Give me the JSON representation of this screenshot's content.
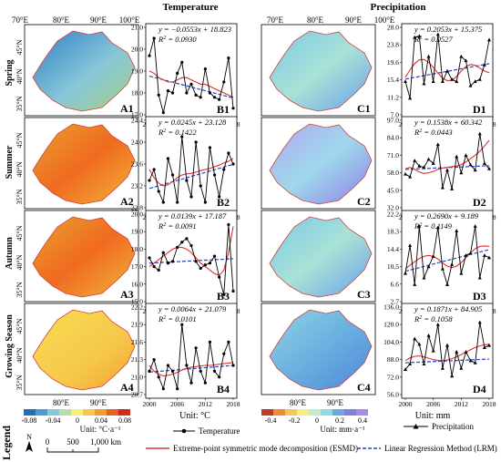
{
  "headers": {
    "temperature": "Temperature",
    "precipitation": "Precipitation"
  },
  "seasons": [
    "Spring",
    "Summer",
    "Autumn",
    "Growing Season"
  ],
  "map_labels": {
    "top_lon": [
      "70°E",
      "80°E",
      "90°E",
      "100°E"
    ],
    "lat": [
      "45°N",
      "40°N",
      "35°N"
    ],
    "bottom_lon": [
      "80°E",
      "90°E"
    ]
  },
  "panel_ids": {
    "maps_temp": [
      "A1",
      "A2",
      "A3",
      "A4"
    ],
    "series_temp": [
      "B1",
      "B2",
      "B3",
      "B4"
    ],
    "maps_precip": [
      "C1",
      "C2",
      "C3",
      "C4"
    ],
    "series_precip": [
      "D1",
      "D2",
      "D3",
      "D4"
    ]
  },
  "legend": {
    "title": "Legend",
    "temp_ticks": [
      "-0.08",
      "-0.04",
      "0",
      "0.04",
      "0.08"
    ],
    "temp_unit": "Unit: °C·a⁻¹",
    "precip_ticks": [
      "-0.4",
      "-0.2",
      "0",
      "0.2",
      "0.4"
    ],
    "precip_unit": "Unit: mm·a⁻¹",
    "series_unit_temp": "Unit: °C",
    "series_unit_precip": "Unit: mm",
    "temp_series_label": "Temperature",
    "precip_series_label": "Precipitation",
    "esmd_label": "Extreme-point symmetric mode decomposition (ESMD)",
    "lrm_label": "Linear Regression Method (LRM)",
    "scale_labels": [
      "0",
      "500",
      "1,000 km"
    ],
    "north": "N",
    "colors": {
      "esmd": "#e03030",
      "lrm": "#2244cc",
      "series": "#000000",
      "boundary": "#d04040"
    }
  },
  "chart_data": [
    {
      "id": "B1",
      "type": "line",
      "equation": "y = −0.0553x + 18.823",
      "r2_label": "R",
      "r2_value": "2 = 0.0930",
      "yticks": [
        "17.0",
        "18.0",
        "19.0",
        "20.0",
        "21.0"
      ],
      "ylim": [
        17.0,
        21.0
      ],
      "xticks": [
        "2000",
        "2006",
        "2012",
        "2018"
      ],
      "xlim": [
        2000,
        2018
      ],
      "series_name": "Temperature",
      "values": [
        19.7,
        20.5,
        17.9,
        17.1,
        18.1,
        18.0,
        18.9,
        19.4,
        18.0,
        18.4,
        17.9,
        17.8,
        19.1,
        18.0,
        17.8,
        17.7,
        18.5,
        19.6,
        17.3
      ],
      "esmd": [
        19.0,
        18.9,
        18.7,
        18.6,
        18.5,
        18.5,
        18.6,
        18.7,
        18.7,
        18.6,
        18.5,
        18.4,
        18.4,
        18.3,
        18.2,
        18.1,
        18.0,
        17.9,
        17.8
      ]
    },
    {
      "id": "B2",
      "type": "line",
      "equation": "y = 0.0245x + 23.128",
      "r2_label": "R",
      "r2_value": "2 = 0.1422",
      "yticks": [
        "22.8",
        "23.2",
        "23.6",
        "24.0",
        "24.4"
      ],
      "ylim": [
        22.8,
        24.4
      ],
      "xticks": [
        "2000",
        "2006",
        "2012",
        "2018"
      ],
      "xlim": [
        2000,
        2018
      ],
      "series_name": "Temperature",
      "values": [
        23.3,
        23.5,
        23.1,
        22.9,
        23.7,
        23.4,
        22.9,
        24.1,
        23.3,
        23.0,
        24.0,
        23.2,
        22.9,
        23.9,
        23.4,
        23.0,
        23.5,
        23.8,
        23.6
      ],
      "esmd": [
        23.5,
        23.35,
        23.25,
        23.2,
        23.22,
        23.28,
        23.35,
        23.4,
        23.42,
        23.43,
        23.45,
        23.48,
        23.5,
        23.52,
        23.55,
        23.58,
        23.62,
        23.65,
        23.7
      ]
    },
    {
      "id": "B3",
      "type": "line",
      "equation": "y = 0.0139x + 17.187",
      "r2_label": "R",
      "r2_value": "2 = 0.0091",
      "yticks": [
        "15.0",
        "16.0",
        "17.0",
        "18.0",
        "19.0",
        "20.0"
      ],
      "ylim": [
        15.0,
        20.0
      ],
      "xticks": [
        "2000",
        "2006",
        "2012",
        "2018"
      ],
      "xlim": [
        2000,
        2018
      ],
      "series_name": "Temperature",
      "values": [
        17.5,
        17.0,
        16.8,
        17.8,
        17.2,
        17.3,
        18.1,
        18.4,
        18.6,
        18.2,
        17.3,
        16.9,
        17.1,
        17.2,
        17.6,
        16.4,
        15.4,
        19.4,
        15.6
      ],
      "esmd": [
        17.0,
        17.2,
        17.4,
        17.6,
        17.8,
        18.0,
        18.1,
        18.1,
        18.0,
        17.8,
        17.5,
        17.2,
        17.0,
        16.8,
        16.6,
        16.5,
        16.8,
        17.8,
        19.3
      ]
    },
    {
      "id": "B4",
      "type": "line",
      "equation": "y = 0.0064x + 21.079",
      "r2_label": "R",
      "r2_value": "2 = 0.0101",
      "yticks": [
        "20.7",
        "21.0",
        "21.3",
        "21.6",
        "21.9",
        "22.2"
      ],
      "ylim": [
        20.7,
        22.2
      ],
      "xticks": [
        "2000",
        "2006",
        "2012",
        "2018"
      ],
      "xlim": [
        2000,
        2018
      ],
      "series_name": "Temperature",
      "values": [
        21.1,
        21.3,
        21.0,
        20.8,
        21.2,
        21.1,
        20.8,
        21.9,
        21.2,
        20.9,
        21.5,
        21.1,
        20.9,
        21.6,
        21.1,
        21.0,
        21.4,
        21.6,
        21.2
      ],
      "esmd": [
        21.2,
        21.1,
        21.05,
        21.02,
        21.03,
        21.05,
        21.08,
        21.12,
        21.15,
        21.17,
        21.18,
        21.19,
        21.2,
        21.2,
        21.21,
        21.22,
        21.23,
        21.24,
        21.25
      ]
    },
    {
      "id": "D1",
      "type": "line",
      "equation": "y = 0.2053x + 15.375",
      "r2_label": "R",
      "r2_value": "2 = 0.0527",
      "yticks": [
        "7.0",
        "11.2",
        "15.4",
        "19.6",
        "23.8",
        "28.0"
      ],
      "ylim": [
        7.0,
        28.0
      ],
      "xticks": [
        "2000",
        "2006",
        "2012",
        "2018"
      ],
      "xlim": [
        2000,
        2018
      ],
      "series_name": "Precipitation",
      "values": [
        15.0,
        11.0,
        25.6,
        25.9,
        14.5,
        21.0,
        15.0,
        26.3,
        15.0,
        17.5,
        15.5,
        15.0,
        21.0,
        20.0,
        14.0,
        15.0,
        15.5,
        19.0,
        25.0
      ],
      "esmd": [
        16.0,
        17.8,
        19.3,
        20.2,
        20.3,
        19.6,
        18.4,
        17.0,
        15.8,
        15.2,
        15.3,
        16.2,
        17.5,
        18.6,
        19.1,
        18.9,
        18.2,
        17.5,
        17.1
      ]
    },
    {
      "id": "D2",
      "type": "line",
      "equation": "y = 0.1538x + 60.342",
      "r2_label": "R",
      "r2_value": "2 = 0.0443",
      "yticks": [
        "32.0",
        "45.0",
        "58.0",
        "71.0",
        "84.0",
        "97.0"
      ],
      "ylim": [
        32.0,
        97.0
      ],
      "xticks": [
        "2000",
        "2006",
        "2012",
        "2018"
      ],
      "xlim": [
        2000,
        2018
      ],
      "series_name": "Precipitation",
      "values": [
        57.0,
        55.0,
        67.0,
        63.0,
        62.0,
        68.0,
        65.0,
        79.0,
        47.0,
        60.0,
        46.0,
        70.0,
        58.0,
        71.0,
        64.0,
        60.0,
        87.0,
        65.0,
        61.0
      ],
      "esmd": [
        61.0,
        62.0,
        60.5,
        58.5,
        57.5,
        58.0,
        59.0,
        60.5,
        61.5,
        62.0,
        62.5,
        63.0,
        64.0,
        66.0,
        68.5,
        71.0,
        74.0,
        78.0,
        82.0
      ]
    },
    {
      "id": "D3",
      "type": "line",
      "equation": "y = 0.2690x + 9.189",
      "r2_label": "R",
      "r2_value": "2 = 0.1149",
      "yticks": [
        "2.7",
        "6.6",
        "10.5",
        "14.4",
        "18.3",
        "22.2"
      ],
      "ylim": [
        2.7,
        22.2
      ],
      "xticks": [
        "2000",
        "2006",
        "2012",
        "2018"
      ],
      "xlim": [
        2000,
        2018
      ],
      "series_name": "Precipitation",
      "values": [
        9.0,
        15.2,
        6.5,
        19.5,
        8.0,
        10.5,
        12.8,
        19.2,
        10.0,
        6.5,
        11.0,
        18.5,
        9.0,
        13.0,
        13.5,
        19.5,
        8.0,
        13.0,
        12.5
      ],
      "esmd": [
        10.0,
        10.8,
        11.6,
        12.3,
        12.8,
        13.0,
        12.8,
        12.2,
        11.3,
        10.6,
        10.3,
        10.6,
        11.4,
        12.5,
        13.6,
        14.5,
        15.0,
        15.1,
        15.0
      ]
    },
    {
      "id": "D4",
      "type": "line",
      "equation": "y = 0.1871x + 84.905",
      "r2_label": "R",
      "r2_value": "2 = 0.1058",
      "yticks": [
        "56.0",
        "72.0",
        "88.0",
        "104.0",
        "120.0",
        "136.0"
      ],
      "ylim": [
        56.0,
        136.0
      ],
      "xticks": [
        "2000",
        "2006",
        "2012",
        "2018"
      ],
      "xlim": [
        2000,
        2018
      ],
      "series_name": "Precipitation",
      "values": [
        79.0,
        84.0,
        107.0,
        102.0,
        84.0,
        110.0,
        96.0,
        120.0,
        80.0,
        101.0,
        73.0,
        95.0,
        80.0,
        95.0,
        87.0,
        85.0,
        122.0,
        99.0,
        101.0
      ],
      "esmd": [
        87.0,
        89.5,
        91.0,
        91.3,
        90.5,
        89.2,
        88.0,
        87.2,
        87.0,
        87.6,
        88.8,
        90.5,
        92.6,
        94.8,
        97.0,
        99.0,
        100.5,
        101.5,
        102.0
      ]
    }
  ]
}
